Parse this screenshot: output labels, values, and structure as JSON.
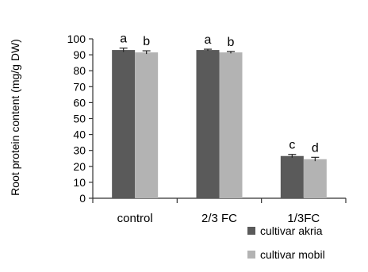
{
  "chart_data": {
    "type": "bar",
    "ylabel": "Root protein content (mg/g DW)",
    "xlabel": "",
    "ylim": [
      0,
      100
    ],
    "ytick_step": 10,
    "grid": false,
    "legend_position": "bottom-right",
    "categories": [
      "control",
      "2/3 FC",
      "1/3FC"
    ],
    "series": [
      {
        "name": "cultivar akria",
        "color": "#5a5a5a",
        "values": [
          93,
          93,
          26.5
        ],
        "errors": [
          1.2,
          0.5,
          1.0
        ],
        "labels": [
          "a",
          "a",
          "c"
        ]
      },
      {
        "name": "cultivar mobil",
        "color": "#b3b3b3",
        "values": [
          91.5,
          91.5,
          24.5
        ],
        "errors": [
          1.0,
          0.6,
          1.2
        ],
        "labels": [
          "b",
          "b",
          "d"
        ]
      }
    ]
  }
}
